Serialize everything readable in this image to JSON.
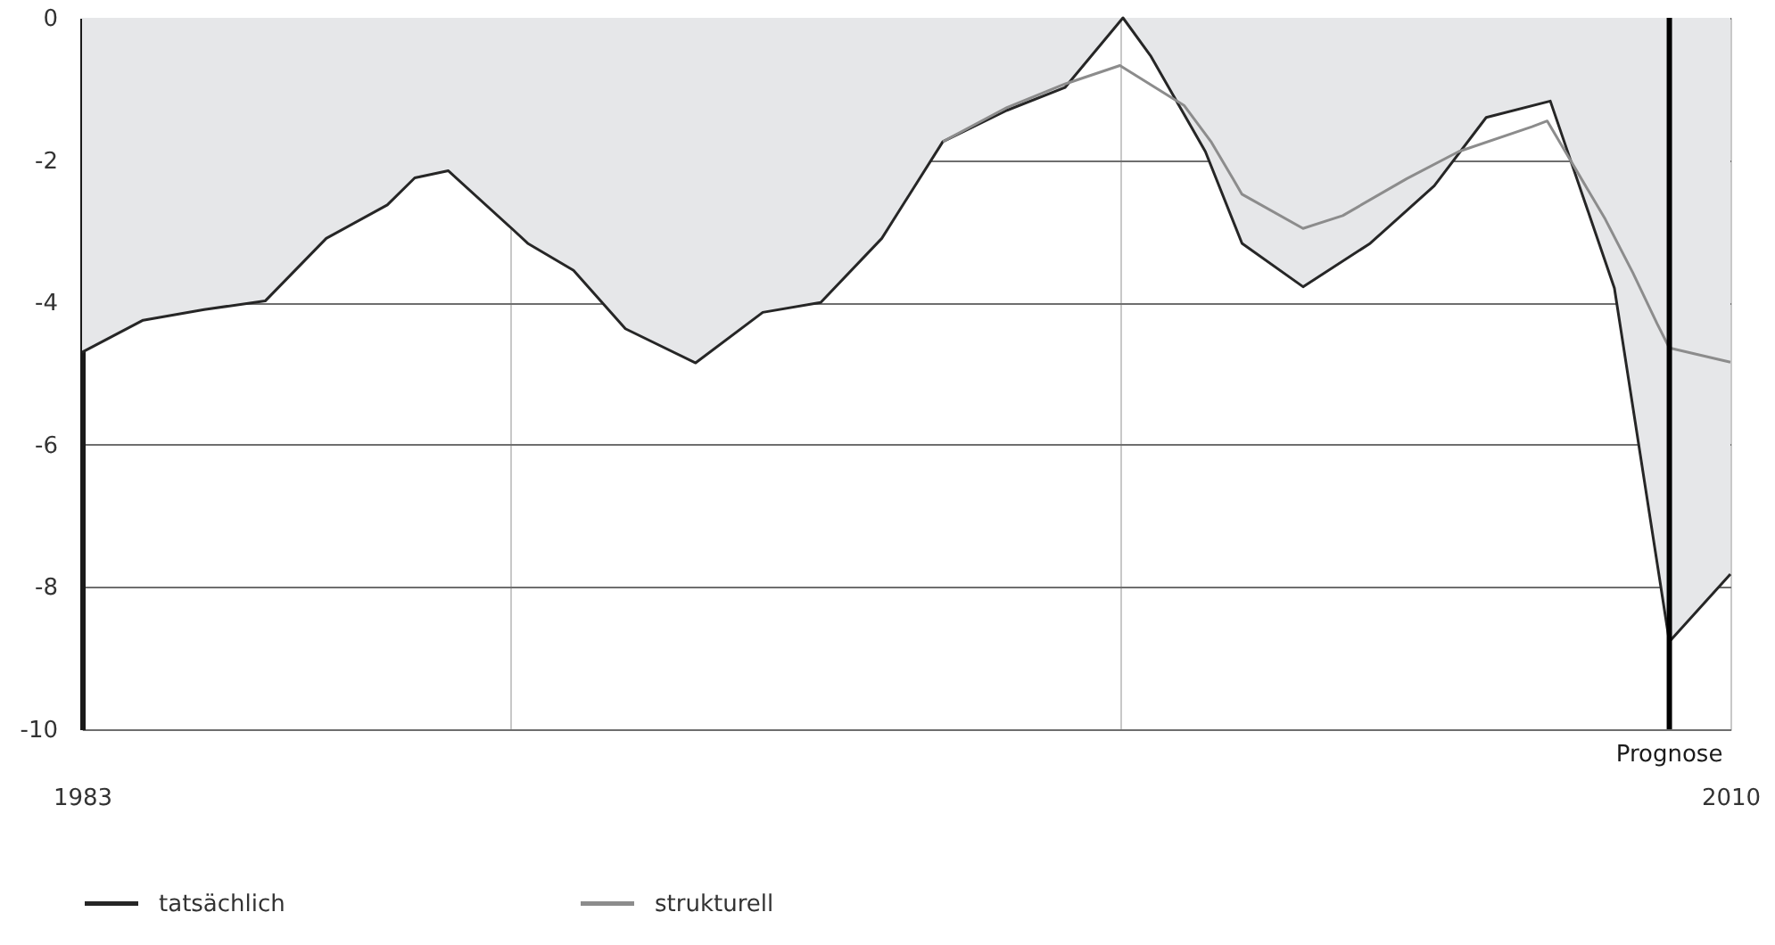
{
  "chart_data": {
    "type": "line",
    "xlim": [
      1983,
      2010
    ],
    "ylim": [
      -10,
      0
    ],
    "xticks": [
      {
        "value": 1983,
        "label": "1983"
      },
      {
        "value": 1990,
        "label": null
      },
      {
        "value": 2000,
        "label": null
      },
      {
        "value": 2010,
        "label": "2010"
      }
    ],
    "yticks": [
      0,
      -2,
      -4,
      -6,
      -8,
      -10
    ],
    "grid": true,
    "legend": "bottom",
    "ref_lines": [
      {
        "axis": "x",
        "value": 2009,
        "label": "Prognose",
        "color": "#000000"
      }
    ],
    "series": [
      {
        "name": "tatsächlich",
        "type": "area",
        "color": "#262626",
        "x": [
          1983,
          1984,
          1985,
          1986,
          1987,
          1988,
          1988.45,
          1989,
          1990.05,
          1990.3,
          1991.05,
          1991.9,
          1993.05,
          1994.15,
          1995.1,
          1996.1,
          1997.1,
          1998.15,
          1999.1,
          2000.05,
          2000.5,
          2001.4,
          2002,
          2003,
          2004.1,
          2005.15,
          2006,
          2007.05,
          2008.1,
          2009,
          2010
        ],
        "values": [
          -4.7,
          -4.25,
          -4.1,
          -3.98,
          -3.1,
          -2.63,
          -2.25,
          -2.15,
          -2.97,
          -3.17,
          -3.55,
          -4.37,
          -4.85,
          -4.14,
          -4.0,
          -3.1,
          -1.74,
          -1.3,
          -0.98,
          0,
          -0.53,
          -1.88,
          -3.17,
          -3.78,
          -3.17,
          -2.36,
          -1.4,
          -1.17,
          -3.8,
          -8.77,
          -7.82
        ]
      },
      {
        "name": "strukturell",
        "type": "line",
        "color": "#8c8c8c",
        "x": [
          1997.1,
          1998.15,
          1999.1,
          2000.0,
          2001.05,
          2001.5,
          2001.85,
          2002.0,
          2003.0,
          2003.65,
          2004.7,
          2005.55,
          2006.75,
          2007.0,
          2007.95,
          2008.4,
          2008.8,
          2009.0,
          2010
        ],
        "values": [
          -1.74,
          -1.26,
          -0.93,
          -0.67,
          -1.23,
          -1.75,
          -2.26,
          -2.48,
          -2.96,
          -2.78,
          -2.26,
          -1.88,
          -1.53,
          -1.45,
          -2.83,
          -3.58,
          -4.3,
          -4.64,
          -4.84
        ]
      }
    ]
  }
}
